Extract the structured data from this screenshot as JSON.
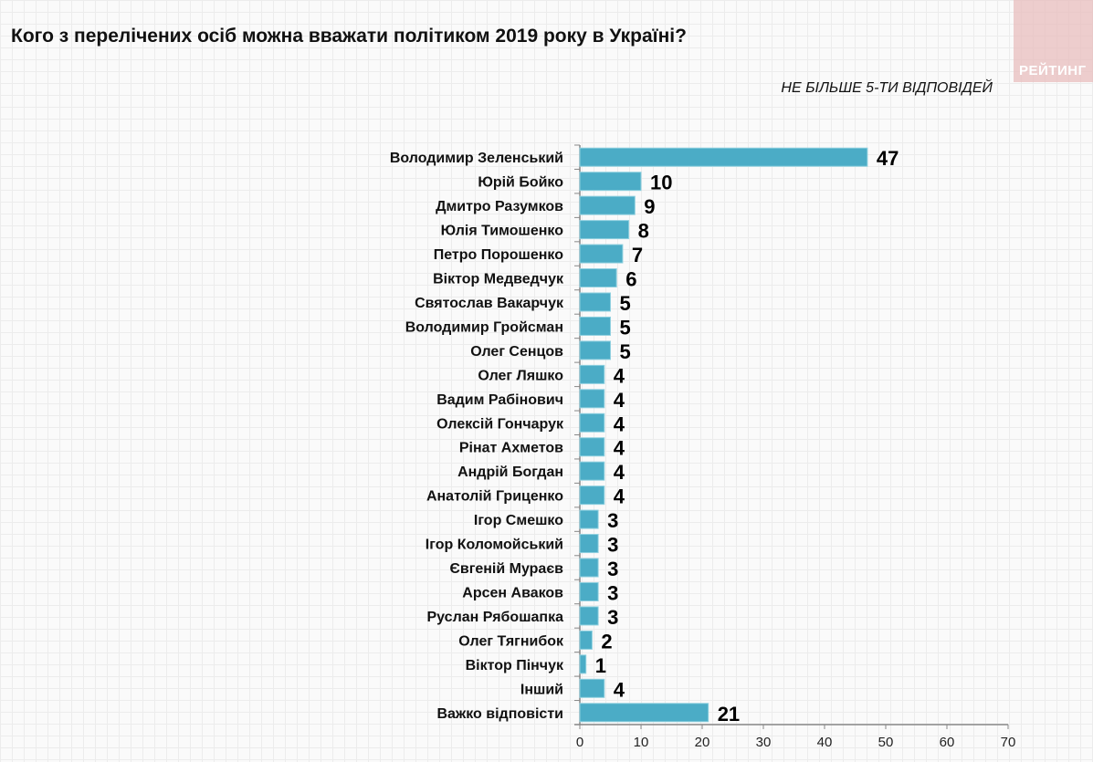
{
  "chart_data": {
    "type": "bar",
    "orientation": "horizontal",
    "title": "Кого з перелічених осіб можна вважати політиком 2019 року в Україні?",
    "subtitle": "НЕ БІЛЬШЕ 5-ТИ ВІДПОВІДЕЙ",
    "categories": [
      "Володимир Зеленський",
      "Юрій Бойко",
      "Дмитро Разумков",
      "Юлія Тимошенко",
      "Петро Порошенко",
      "Віктор Медведчук",
      "Святослав Вакарчук",
      "Володимир Гройсман",
      "Олег Сенцов",
      "Олег Ляшко",
      "Вадим Рабінович",
      "Олексій Гончарук",
      "Рінат Ахметов",
      "Андрій Богдан",
      "Анатолій Гриценко",
      "Ігор Смешко",
      "Ігор Коломойський",
      "Євгеній Мураєв",
      "Арсен Аваков",
      "Руслан Рябошапка",
      "Олег Тягнибок",
      "Віктор Пінчук",
      "Інший",
      "Важко відповісти"
    ],
    "values": [
      47,
      10,
      9,
      8,
      7,
      6,
      5,
      5,
      5,
      4,
      4,
      4,
      4,
      4,
      4,
      3,
      3,
      3,
      3,
      3,
      2,
      1,
      4,
      21
    ],
    "xlim": [
      0,
      70
    ],
    "xticks": [
      0,
      10,
      20,
      30,
      40,
      50,
      60,
      70
    ],
    "xlabel": "",
    "ylabel": "",
    "grid": false,
    "bar_color": "#4bacc6"
  },
  "logo": "РЕЙТИНГ"
}
